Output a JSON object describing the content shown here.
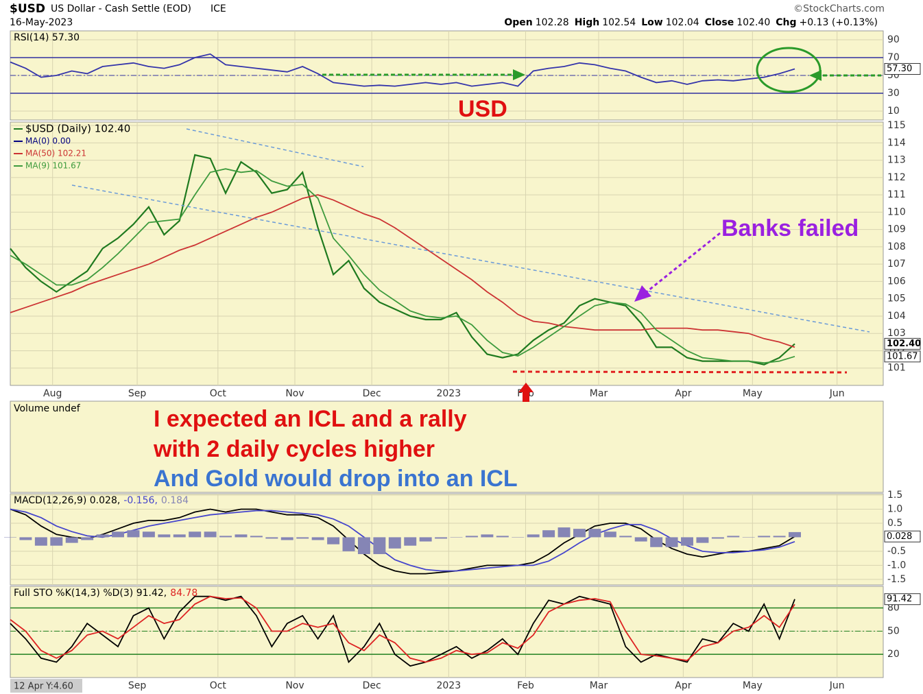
{
  "header": {
    "symbol": "$USD",
    "name": "US Dollar - Cash Settle (EOD)",
    "exchange": "ICE",
    "date": "16-May-2023",
    "source": "©StockCharts.com",
    "quote": [
      "Open",
      "102.28",
      "High",
      "102.54",
      "Low",
      "102.04",
      "Close",
      "102.40",
      "Chg",
      "+0.13 (+0.13%)"
    ],
    "volume_label": "Volume undef",
    "crosshair": "12 Apr Y:4.60"
  },
  "annotations": {
    "usd": "USD",
    "banks": "Banks failed",
    "line1": "I expected an ICL and a rally",
    "line2": "with 2 daily cycles higher",
    "line3": "And Gold would drop into an ICL"
  },
  "chart_data": [
    {
      "type": "line",
      "legend": "inline",
      "xlim": [
        0,
        227
      ],
      "ylim": [
        0,
        100
      ],
      "yticks": [
        10,
        30,
        50,
        70,
        90
      ],
      "ref_lines": [
        70,
        30
      ],
      "mid_line": 50,
      "ref_color": "#3030a0",
      "x": [
        0,
        4,
        8,
        12,
        16,
        20,
        24,
        28,
        32,
        36,
        40,
        44,
        48,
        52,
        56,
        60,
        64,
        68,
        72,
        76,
        80,
        84,
        88,
        92,
        96,
        100,
        104,
        108,
        112,
        116,
        120,
        124,
        128,
        132,
        136,
        140,
        144,
        148,
        152,
        156,
        160,
        164,
        168,
        172,
        176,
        180,
        184,
        188,
        192,
        196,
        200,
        204
      ],
      "xticks": [
        11,
        33,
        54,
        74,
        94,
        114,
        134,
        153,
        175,
        193,
        215
      ],
      "series": [
        {
          "name": "RSI(14) 57.30",
          "color": "#3333aa",
          "values": [
            65,
            58,
            48,
            50,
            55,
            52,
            60,
            62,
            64,
            60,
            58,
            62,
            70,
            74,
            62,
            60,
            58,
            56,
            54,
            60,
            52,
            42,
            40,
            38,
            39,
            38,
            40,
            42,
            40,
            42,
            38,
            40,
            42,
            38,
            55,
            58,
            60,
            64,
            62,
            58,
            55,
            48,
            42,
            44,
            40,
            44,
            45,
            44,
            46,
            48,
            52,
            57.3
          ]
        }
      ],
      "tags": [
        {
          "value": 57.3,
          "label": "57.30"
        }
      ]
    },
    {
      "type": "line",
      "legend": "stacked",
      "xlim": [
        0,
        227
      ],
      "ylim": [
        100,
        115.2
      ],
      "yticks": [
        101,
        102,
        103,
        104,
        105,
        106,
        107,
        108,
        109,
        110,
        111,
        112,
        113,
        114,
        115
      ],
      "x": [
        0,
        4,
        8,
        12,
        16,
        20,
        24,
        28,
        32,
        36,
        40,
        44,
        48,
        52,
        56,
        60,
        64,
        68,
        72,
        76,
        80,
        84,
        88,
        92,
        96,
        100,
        104,
        108,
        112,
        116,
        120,
        124,
        128,
        132,
        136,
        140,
        144,
        148,
        152,
        156,
        160,
        164,
        168,
        172,
        176,
        180,
        184,
        188,
        192,
        196,
        200,
        204
      ],
      "xticks": [
        {
          "value": 11,
          "label": "Aug"
        },
        {
          "value": 33,
          "label": "Sep"
        },
        {
          "value": 54,
          "label": "Oct"
        },
        {
          "value": 74,
          "label": "Nov"
        },
        {
          "value": 94,
          "label": "Dec"
        },
        {
          "value": 114,
          "label": "2023"
        },
        {
          "value": 134,
          "label": "Feb"
        },
        {
          "value": 153,
          "label": "Mar"
        },
        {
          "value": 175,
          "label": "Apr"
        },
        {
          "value": 193,
          "label": "May"
        },
        {
          "value": 215,
          "label": "Jun"
        }
      ],
      "series": [
        {
          "name": "$USD (Daily) 102.40",
          "color": "#1f7a1f",
          "values": [
            107.9,
            106.8,
            106.0,
            105.4,
            106.0,
            106.6,
            107.9,
            108.5,
            109.3,
            110.3,
            108.7,
            109.5,
            113.3,
            113.1,
            111.1,
            112.9,
            112.3,
            111.1,
            111.3,
            112.3,
            109.1,
            106.4,
            107.2,
            105.6,
            104.8,
            104.4,
            104.0,
            103.8,
            103.8,
            104.2,
            102.8,
            101.8,
            101.6,
            101.8,
            102.6,
            103.2,
            103.6,
            104.6,
            105.0,
            104.8,
            104.6,
            103.6,
            102.2,
            102.2,
            101.6,
            101.4,
            101.4,
            101.4,
            101.4,
            101.2,
            101.6,
            102.4
          ]
        },
        {
          "name": "MA(50) 102.21",
          "color": "#cc3333",
          "values": [
            104.2,
            104.5,
            104.8,
            105.1,
            105.4,
            105.8,
            106.1,
            106.4,
            106.7,
            107.0,
            107.4,
            107.8,
            108.1,
            108.5,
            108.9,
            109.3,
            109.7,
            110.0,
            110.4,
            110.8,
            111.0,
            110.7,
            110.3,
            109.9,
            109.6,
            109.1,
            108.5,
            107.9,
            107.3,
            106.7,
            106.1,
            105.4,
            104.8,
            104.1,
            103.7,
            103.6,
            103.4,
            103.3,
            103.2,
            103.2,
            103.2,
            103.2,
            103.3,
            103.3,
            103.3,
            103.2,
            103.2,
            103.1,
            103.0,
            102.7,
            102.5,
            102.2
          ]
        },
        {
          "name": "MA(9) 101.67",
          "color": "#3d9a3d",
          "values": [
            107.5,
            107.0,
            106.4,
            105.8,
            105.8,
            106.1,
            106.8,
            107.6,
            108.5,
            109.4,
            109.5,
            109.6,
            111.0,
            112.3,
            112.5,
            112.3,
            112.4,
            111.8,
            111.5,
            111.6,
            110.8,
            108.5,
            107.5,
            106.4,
            105.5,
            104.9,
            104.3,
            104.0,
            103.9,
            104.0,
            103.5,
            102.6,
            101.9,
            101.7,
            102.2,
            102.8,
            103.4,
            104.0,
            104.6,
            104.8,
            104.7,
            104.2,
            103.2,
            102.6,
            102.0,
            101.6,
            101.5,
            101.4,
            101.4,
            101.3,
            101.4,
            101.67
          ]
        }
      ],
      "legend_only": [
        {
          "name": "MA(0) 0.00",
          "color": "#000080"
        }
      ],
      "tags": [
        {
          "value": 102.4,
          "label": "102.40"
        },
        {
          "value": 101.67,
          "label": "101.67"
        }
      ]
    },
    {
      "type": "line",
      "legend": "inline",
      "xlim": [
        0,
        227
      ],
      "ylim": [
        -1.7,
        1.55
      ],
      "yticks": [
        1.5,
        {
          "value": 1,
          "label": "1.0"
        },
        0.5,
        -0.5,
        {
          "value": -1,
          "label": "-1.0"
        },
        -1.5
      ],
      "x": [
        0,
        4,
        8,
        12,
        16,
        20,
        24,
        28,
        32,
        36,
        40,
        44,
        48,
        52,
        56,
        60,
        64,
        68,
        72,
        76,
        80,
        84,
        88,
        92,
        96,
        100,
        104,
        108,
        112,
        116,
        120,
        124,
        128,
        132,
        136,
        140,
        144,
        148,
        152,
        156,
        160,
        164,
        168,
        172,
        176,
        180,
        184,
        188,
        192,
        196,
        200,
        204
      ],
      "xticks": [
        11,
        33,
        54,
        74,
        94,
        114,
        134,
        153,
        175,
        193,
        215
      ],
      "series": [
        {
          "name": "MACD(12,26,9) 0.028,",
          "color": "#000000",
          "values": [
            1.0,
            0.8,
            0.4,
            0.1,
            0.0,
            -0.05,
            0.1,
            0.3,
            0.5,
            0.6,
            0.6,
            0.7,
            0.9,
            1.0,
            0.9,
            1.0,
            1.0,
            0.9,
            0.8,
            0.8,
            0.7,
            0.4,
            -0.1,
            -0.6,
            -1.0,
            -1.2,
            -1.3,
            -1.3,
            -1.25,
            -1.2,
            -1.1,
            -1.0,
            -1.0,
            -1.0,
            -0.9,
            -0.6,
            -0.2,
            0.1,
            0.4,
            0.5,
            0.5,
            0.3,
            -0.1,
            -0.4,
            -0.6,
            -0.7,
            -0.6,
            -0.5,
            -0.5,
            -0.4,
            -0.3,
            0.028
          ]
        },
        {
          "name": "-0.156,",
          "color": "#4444cc",
          "values": [
            1.0,
            0.9,
            0.7,
            0.4,
            0.2,
            0.05,
            0.0,
            0.1,
            0.25,
            0.4,
            0.5,
            0.6,
            0.7,
            0.8,
            0.85,
            0.9,
            0.95,
            0.95,
            0.9,
            0.85,
            0.8,
            0.65,
            0.4,
            0.0,
            -0.4,
            -0.8,
            -1.0,
            -1.15,
            -1.2,
            -1.2,
            -1.15,
            -1.1,
            -1.05,
            -1.0,
            -1.0,
            -0.85,
            -0.55,
            -0.2,
            0.1,
            0.3,
            0.45,
            0.45,
            0.25,
            -0.05,
            -0.3,
            -0.5,
            -0.55,
            -0.55,
            -0.5,
            -0.45,
            -0.35,
            -0.156
          ]
        },
        {
          "name": "0.184",
          "color": "#8585b5",
          "style": "histogram",
          "values": [
            0,
            -0.1,
            -0.3,
            -0.3,
            -0.2,
            -0.1,
            0.1,
            0.2,
            0.25,
            0.2,
            0.1,
            0.1,
            0.2,
            0.2,
            0.05,
            0.1,
            0.05,
            -0.05,
            -0.1,
            -0.05,
            -0.1,
            -0.25,
            -0.5,
            -0.6,
            -0.6,
            -0.4,
            -0.3,
            -0.15,
            -0.05,
            0,
            0.05,
            0.1,
            0.05,
            0,
            0.1,
            0.25,
            0.35,
            0.3,
            0.3,
            0.2,
            0.05,
            -0.15,
            -0.35,
            -0.35,
            -0.3,
            -0.2,
            -0.05,
            0.05,
            0,
            0.05,
            0.05,
            0.184
          ]
        }
      ],
      "tags": [
        {
          "value": 0.028,
          "label": "0.028"
        }
      ]
    },
    {
      "type": "line",
      "legend": "inline",
      "xlim": [
        0,
        227
      ],
      "ylim": [
        -10,
        108
      ],
      "yticks": [
        20,
        50,
        80
      ],
      "ref_lines": [
        80,
        20
      ],
      "mid_line": 50,
      "ref_color": "#208020",
      "x": [
        0,
        4,
        8,
        12,
        16,
        20,
        24,
        28,
        32,
        36,
        40,
        44,
        48,
        52,
        56,
        60,
        64,
        68,
        72,
        76,
        80,
        84,
        88,
        92,
        96,
        100,
        104,
        108,
        112,
        116,
        120,
        124,
        128,
        132,
        136,
        140,
        144,
        148,
        152,
        156,
        160,
        164,
        168,
        172,
        176,
        180,
        184,
        188,
        192,
        196,
        200,
        204
      ],
      "xticks": [
        {
          "value": 33,
          "label": "Sep"
        },
        {
          "value": 54,
          "label": "Oct"
        },
        {
          "value": 74,
          "label": "Nov"
        },
        {
          "value": 94,
          "label": "Dec"
        },
        {
          "value": 114,
          "label": "2023"
        },
        {
          "value": 134,
          "label": "Feb"
        },
        {
          "value": 153,
          "label": "Mar"
        },
        {
          "value": 175,
          "label": "Apr"
        },
        {
          "value": 193,
          "label": "May"
        },
        {
          "value": 215,
          "label": "Jun"
        }
      ],
      "series": [
        {
          "name": "Full STO %K(14,3) %D(3) 91.42,",
          "color": "#000000",
          "values": [
            60,
            40,
            15,
            10,
            30,
            60,
            45,
            30,
            70,
            80,
            40,
            75,
            95,
            95,
            90,
            95,
            70,
            30,
            60,
            70,
            40,
            70,
            10,
            30,
            60,
            20,
            5,
            10,
            20,
            30,
            15,
            25,
            40,
            20,
            60,
            90,
            85,
            95,
            90,
            85,
            30,
            10,
            20,
            15,
            10,
            40,
            35,
            60,
            50,
            85,
            40,
            91.42
          ]
        },
        {
          "name": "84.78",
          "color": "#dd2222",
          "values": [
            65,
            50,
            25,
            15,
            25,
            45,
            50,
            40,
            55,
            70,
            60,
            65,
            85,
            95,
            92,
            93,
            80,
            50,
            50,
            60,
            55,
            60,
            35,
            25,
            45,
            35,
            15,
            10,
            15,
            25,
            20,
            22,
            35,
            28,
            45,
            75,
            85,
            90,
            92,
            88,
            50,
            20,
            18,
            15,
            12,
            30,
            35,
            50,
            55,
            70,
            55,
            84.78
          ]
        }
      ],
      "tags": [
        {
          "value": 91.42,
          "label": "91.42"
        }
      ]
    }
  ]
}
